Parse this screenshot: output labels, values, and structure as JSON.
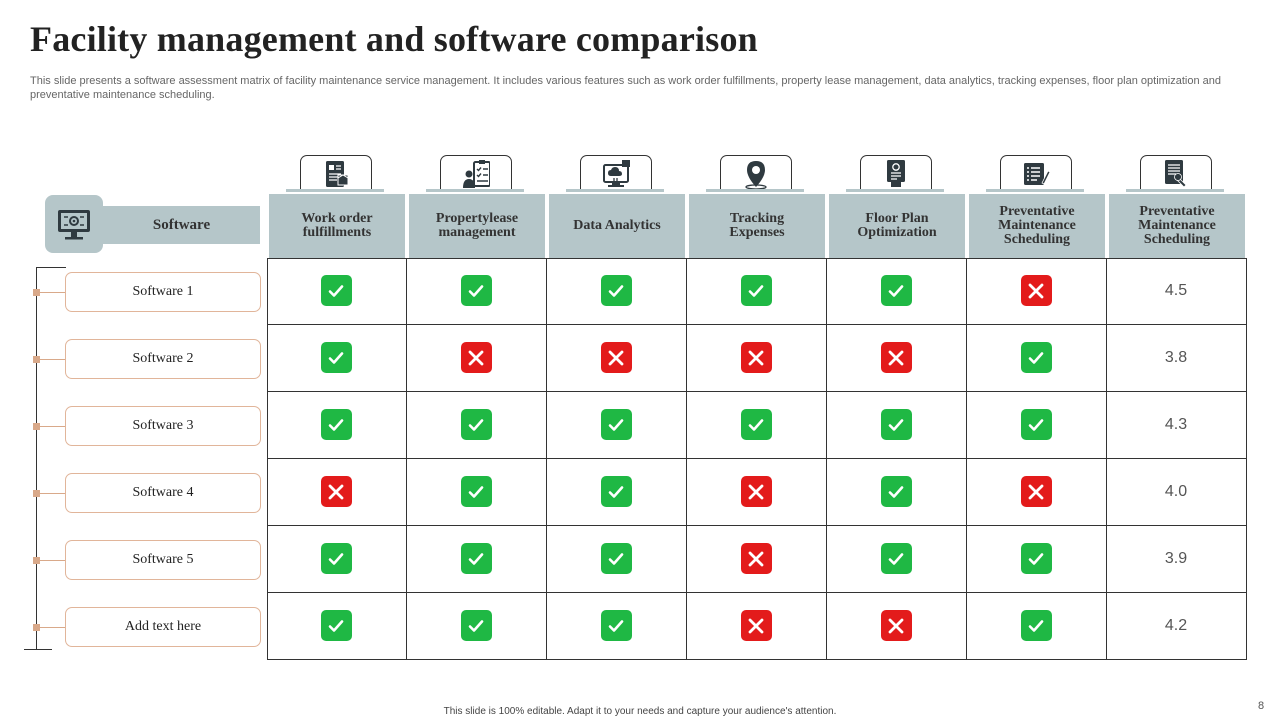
{
  "title": "Facility management  and software comparison",
  "subtitle": "This slide presents a software assessment matrix of facility maintenance service management. It includes various features such as work order fulfillments, property lease management, data analytics, tracking expenses, floor plan optimization and preventative maintenance scheduling.",
  "header": {
    "label": "Software",
    "icon": "computer-gear-icon"
  },
  "columns": [
    {
      "label": "Work order fulfillments",
      "icon": "document-box-icon"
    },
    {
      "label": "Propertylease management",
      "icon": "person-checklist-icon"
    },
    {
      "label": "Data Analytics",
      "icon": "monitor-cloud-icon"
    },
    {
      "label": "Tracking Expenses",
      "icon": "location-pin-icon"
    },
    {
      "label": "Floor Plan Optimization",
      "icon": "plan-document-icon"
    },
    {
      "label": "Preventative Maintenance Scheduling",
      "icon": "checklist-pen-icon"
    },
    {
      "label": "Preventative Maintenance Scheduling",
      "icon": "document-wrench-icon"
    }
  ],
  "rows": [
    {
      "label": "Software 1",
      "marks": [
        true,
        true,
        true,
        true,
        true,
        false
      ],
      "score": "4.5"
    },
    {
      "label": "Software 2",
      "marks": [
        true,
        false,
        false,
        false,
        false,
        true
      ],
      "score": "3.8"
    },
    {
      "label": "Software 3",
      "marks": [
        true,
        true,
        true,
        true,
        true,
        true
      ],
      "score": "4.3"
    },
    {
      "label": "Software 4",
      "marks": [
        false,
        true,
        true,
        false,
        true,
        false
      ],
      "score": "4.0"
    },
    {
      "label": "Software 5",
      "marks": [
        true,
        true,
        true,
        false,
        true,
        true
      ],
      "score": "3.9"
    },
    {
      "label": "Add text here",
      "marks": [
        true,
        true,
        true,
        false,
        false,
        true
      ],
      "score": "4.2"
    }
  ],
  "colors": {
    "header_fill": "#b5c6c9",
    "check": "#1fb844",
    "cross": "#e31b1b",
    "row_border": "#e1b59a"
  },
  "footer": "This slide is 100% editable.  Adapt it to your needs and capture your audience's attention.",
  "page_number": "8"
}
